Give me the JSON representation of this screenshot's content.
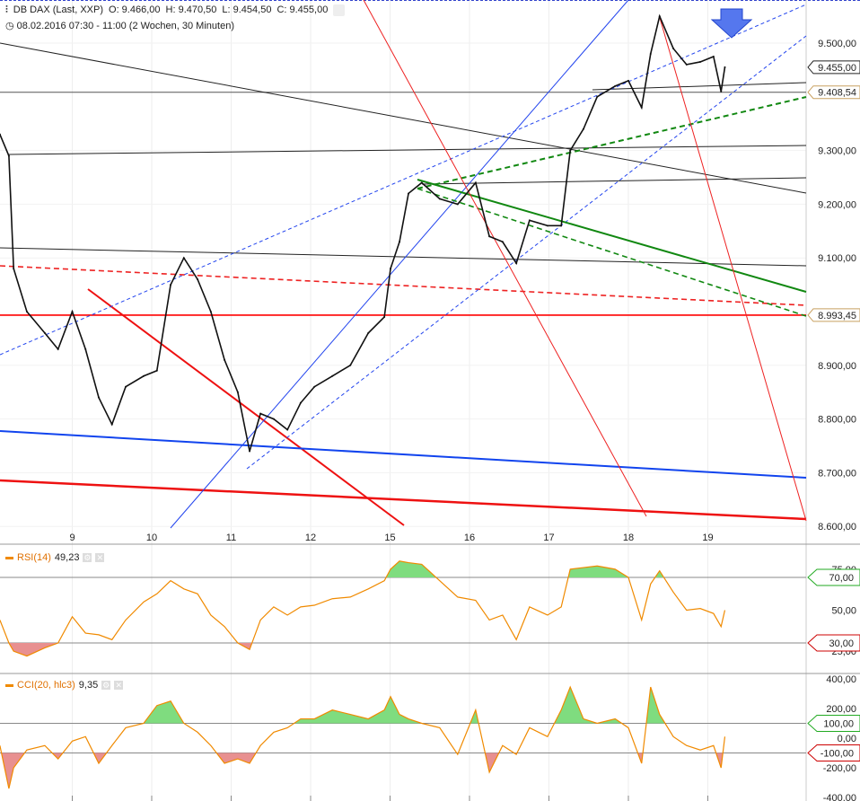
{
  "header": {
    "instrument": "DB DAX (Last, XXP)",
    "open": "O: 9.466,00",
    "high": "H: 9.470,50",
    "low": "L: 9.454,50",
    "close": "C: 9.455,00",
    "range": "08.02.2016 07:30 - 11:00 (2 Wochen, 30 Minuten)",
    "icons": [
      "chart-settings-icon",
      "clock-icon",
      "gear-icon"
    ]
  },
  "indicators": {
    "rsi": {
      "label": "RSI(14)",
      "value": "49,23"
    },
    "cci": {
      "label": "CCI(20, hlc3)",
      "value": "9,35"
    }
  },
  "colors": {
    "up_fill": "#7fdc7f",
    "down_fill": "#e89090",
    "indicator_line": "#f08a00",
    "price_line": "#111111"
  },
  "chart_data": [
    {
      "type": "line",
      "title": "DB DAX (Last, XXP)",
      "x_tick_labels": [
        "9",
        "10",
        "11",
        "12",
        "15",
        "16",
        "17",
        "18",
        "19"
      ],
      "y_tick_labels": [
        "9.500,00",
        "9.300,00",
        "9.200,00",
        "9.100,00",
        "8.900,00",
        "8.800,00",
        "8.700,00",
        "8.600,00"
      ],
      "y_ticks": [
        9500,
        9300,
        9200,
        9100,
        8900,
        8800,
        8700,
        8600
      ],
      "ylim": [
        8600,
        9570
      ],
      "grid": true,
      "price_tags": [
        {
          "label": "9.455,00",
          "value": 9455,
          "color": "#222222"
        },
        {
          "label": "9.408,54",
          "value": 9408.54,
          "color": "#c8a060"
        },
        {
          "label": "8.993,45",
          "value": 8993.45,
          "color": "#c8a060"
        }
      ],
      "levels": [
        {
          "value": 9408.54,
          "color": "#555555"
        },
        {
          "value": 8993.45,
          "color": "#ff0000"
        }
      ],
      "points": [
        {
          "t": "08.02 09:15",
          "c": 9330,
          "rsi": 44,
          "cci": -50
        },
        {
          "t": "08.02 10:50",
          "c": 9290,
          "rsi": 30,
          "cci": -340
        },
        {
          "t": "08.02 11:40",
          "c": 9080,
          "rsi": 25,
          "cci": -200
        },
        {
          "t": "08.02 14:00",
          "c": 9000,
          "rsi": 22,
          "cci": -80
        },
        {
          "t": "08.02 17:10",
          "c": 8960,
          "rsi": 27,
          "cci": -50
        },
        {
          "t": "08.02 19:30",
          "c": 8930,
          "rsi": 30,
          "cci": -140
        },
        {
          "t": "09.02 08:00",
          "c": 9000,
          "rsi": 46,
          "cci": -20
        },
        {
          "t": "09.02 10:20",
          "c": 8930,
          "rsi": 36,
          "cci": 10
        },
        {
          "t": "09.02 12:40",
          "c": 8840,
          "rsi": 35,
          "cci": -170
        },
        {
          "t": "09.02 15:00",
          "c": 8790,
          "rsi": 32,
          "cci": -50
        },
        {
          "t": "09.02 17:25",
          "c": 8860,
          "rsi": 44,
          "cci": 70
        },
        {
          "t": "09.02 20:35",
          "c": 8880,
          "rsi": 55,
          "cci": 100
        },
        {
          "t": "10.02 08:55",
          "c": 8890,
          "rsi": 60,
          "cci": 220
        },
        {
          "t": "10.02 11:20",
          "c": 9050,
          "rsi": 68,
          "cci": 250
        },
        {
          "t": "10.02 13:40",
          "c": 9100,
          "rsi": 63,
          "cci": 100
        },
        {
          "t": "10.02 16:05",
          "c": 9060,
          "rsi": 60,
          "cci": 40
        },
        {
          "t": "10.02 18:25",
          "c": 9000,
          "rsi": 47,
          "cci": -50
        },
        {
          "t": "10.02 20:50",
          "c": 8910,
          "rsi": 40,
          "cci": -170
        },
        {
          "t": "11.02 09:10",
          "c": 8850,
          "rsi": 30,
          "cci": -140
        },
        {
          "t": "11.02 11:15",
          "c": 8740,
          "rsi": 26,
          "cci": -170
        },
        {
          "t": "11.02 13:10",
          "c": 8810,
          "rsi": 44,
          "cci": -50
        },
        {
          "t": "11.02 15:30",
          "c": 8800,
          "rsi": 52,
          "cci": 40
        },
        {
          "t": "11.02 17:55",
          "c": 8780,
          "rsi": 47,
          "cci": 70
        },
        {
          "t": "11.02 20:15",
          "c": 8830,
          "rsi": 52,
          "cci": 130
        },
        {
          "t": "12.02 08:40",
          "c": 8860,
          "rsi": 53,
          "cci": 130
        },
        {
          "t": "12.02 11:50",
          "c": 8880,
          "rsi": 57,
          "cci": 190
        },
        {
          "t": "12.02 15:00",
          "c": 8900,
          "rsi": 58,
          "cci": 160
        },
        {
          "t": "12.02 18:10",
          "c": 8960,
          "rsi": 63,
          "cci": 130
        },
        {
          "t": "12.02 21:00",
          "c": 8990,
          "rsi": 68,
          "cci": 190
        },
        {
          "t": "15.02 08:05",
          "c": 9080,
          "rsi": 75,
          "cci": 280
        },
        {
          "t": "15.02 09:40",
          "c": 9130,
          "rsi": 80,
          "cci": 160
        },
        {
          "t": "15.02 11:15",
          "c": 9220,
          "rsi": 79,
          "cci": 130
        },
        {
          "t": "15.02 13:35",
          "c": 9240,
          "rsi": 78,
          "cci": 100
        },
        {
          "t": "15.02 16:45",
          "c": 9210,
          "rsi": 68,
          "cci": 70
        },
        {
          "t": "15.02 19:55",
          "c": 9200,
          "rsi": 58,
          "cci": -110
        },
        {
          "t": "16.02 09:05",
          "c": 9240,
          "rsi": 56,
          "cci": 190
        },
        {
          "t": "16.02 11:30",
          "c": 9140,
          "rsi": 44,
          "cci": -230
        },
        {
          "t": "16.02 13:50",
          "c": 9130,
          "rsi": 47,
          "cci": -50
        },
        {
          "t": "16.02 16:15",
          "c": 9090,
          "rsi": 32,
          "cci": -110
        },
        {
          "t": "16.02 18:35",
          "c": 9170,
          "rsi": 52,
          "cci": 70
        },
        {
          "t": "16.02 21:45",
          "c": 9160,
          "rsi": 47,
          "cci": 10
        },
        {
          "t": "17.02 10:10",
          "c": 9160,
          "rsi": 52,
          "cci": 190
        },
        {
          "t": "17.02 11:45",
          "c": 9300,
          "rsi": 75,
          "cci": 345
        },
        {
          "t": "17.02 14:05",
          "c": 9340,
          "rsi": 76,
          "cci": 130
        },
        {
          "t": "17.02 16:30",
          "c": 9400,
          "rsi": 77,
          "cci": 100
        },
        {
          "t": "17.02 19:40",
          "c": 9420,
          "rsi": 75,
          "cci": 130
        },
        {
          "t": "18.02 08:00",
          "c": 9430,
          "rsi": 70,
          "cci": 70
        },
        {
          "t": "18.02 10:20",
          "c": 9380,
          "rsi": 44,
          "cci": -170
        },
        {
          "t": "18.02 11:55",
          "c": 9480,
          "rsi": 66,
          "cci": 345
        },
        {
          "t": "18.02 13:30",
          "c": 9550,
          "rsi": 74,
          "cci": 160
        },
        {
          "t": "18.02 15:55",
          "c": 9490,
          "rsi": 61,
          "cci": 10
        },
        {
          "t": "18.02 18:15",
          "c": 9460,
          "rsi": 50,
          "cci": -50
        },
        {
          "t": "18.02 20:40",
          "c": 9465,
          "rsi": 51,
          "cci": -80
        },
        {
          "t": "19.02 09:00",
          "c": 9475,
          "rsi": 48,
          "cci": -50
        },
        {
          "t": "19.02 10:20",
          "c": 9410,
          "rsi": 40,
          "cci": -200
        },
        {
          "t": "19.02 11:00",
          "c": 9455,
          "rsi": 50,
          "cci": 10
        }
      ]
    },
    {
      "type": "line",
      "title": "RSI(14)",
      "ylim": [
        20,
        80
      ],
      "y_tick_labels": [
        "75,00",
        "50,00",
        "25,00"
      ],
      "y_ticks": [
        75,
        50,
        25
      ],
      "thresholds": [
        {
          "label": "70,00",
          "value": 70,
          "color": "#22aa22"
        },
        {
          "label": "30,00",
          "value": 30,
          "color": "#cc0000"
        }
      ]
    },
    {
      "type": "line",
      "title": "CCI(20, hlc3)",
      "ylim": [
        -400,
        400
      ],
      "y_tick_labels": [
        "400,00",
        "200,00",
        "0,00",
        "-200,00",
        "-400,00"
      ],
      "y_ticks": [
        400,
        200,
        0,
        -200,
        -400
      ],
      "thresholds": [
        {
          "label": "100,00",
          "value": 100,
          "color": "#22aa22"
        },
        {
          "label": "-100,00",
          "value": -100,
          "color": "#cc0000"
        }
      ]
    }
  ]
}
